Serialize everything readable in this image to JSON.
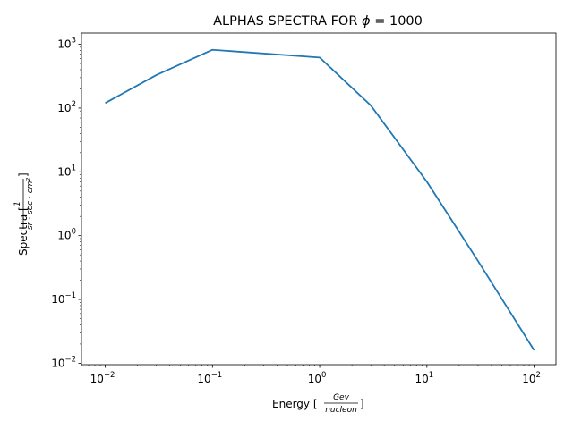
{
  "chart_data": {
    "type": "line",
    "title_prefix": "ALPHAS SPECTRA FOR ",
    "title_symbol": "ϕ",
    "title_suffix": " = 1000",
    "xlabel_prefix": "Energy [",
    "xlabel_num": "Gev",
    "xlabel_den": "nucleon",
    "xlabel_suffix": "]",
    "ylabel_prefix": "Spectra [",
    "ylabel_num": "1",
    "ylabel_den": "sr · sec · cm²",
    "ylabel_suffix": "]",
    "x_scale": "log",
    "y_scale": "log",
    "xlim": [
      0.006,
      160
    ],
    "ylim": [
      0.0095,
      1500
    ],
    "grid": false,
    "line_color": "#1f77b4",
    "x_ticks": [
      {
        "value": 0.01,
        "base": "10",
        "exp": "−2"
      },
      {
        "value": 0.1,
        "base": "10",
        "exp": "−1"
      },
      {
        "value": 1,
        "base": "10",
        "exp": "0"
      },
      {
        "value": 10,
        "base": "10",
        "exp": "1"
      },
      {
        "value": 100,
        "base": "10",
        "exp": "2"
      }
    ],
    "y_ticks": [
      {
        "value": 0.01,
        "base": "10",
        "exp": "−2"
      },
      {
        "value": 0.1,
        "base": "10",
        "exp": "−1"
      },
      {
        "value": 1,
        "base": "10",
        "exp": "0"
      },
      {
        "value": 10,
        "base": "10",
        "exp": "1"
      },
      {
        "value": 100,
        "base": "10",
        "exp": "2"
      },
      {
        "value": 1000,
        "base": "10",
        "exp": "3"
      }
    ],
    "series": [
      {
        "x": [
          0.01,
          0.03,
          0.1,
          1,
          3,
          10,
          30,
          100
        ],
        "y": [
          120,
          330,
          820,
          620,
          110,
          7,
          0.4,
          0.016
        ]
      }
    ]
  }
}
